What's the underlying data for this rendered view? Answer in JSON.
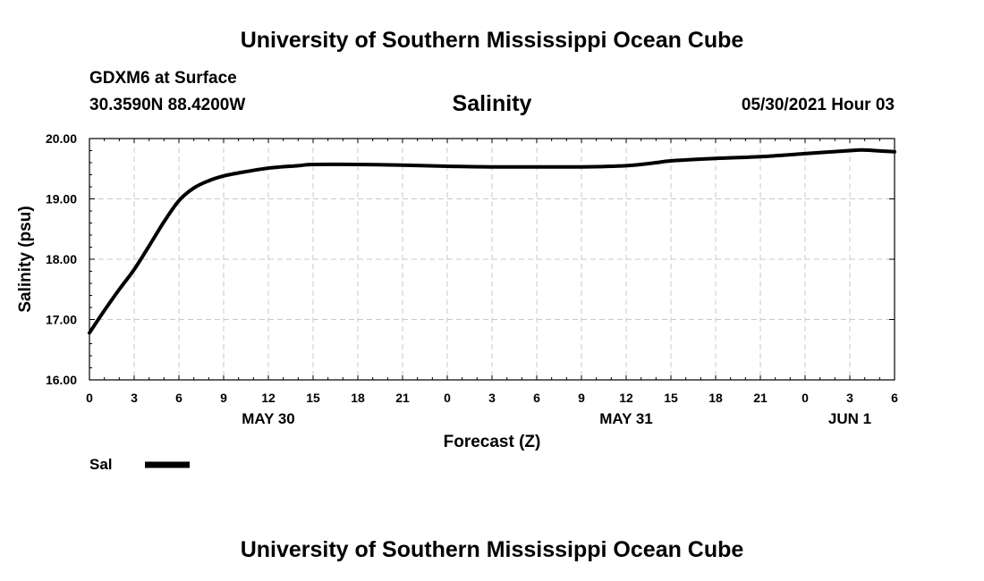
{
  "header": {
    "title": "University of Southern Mississippi Ocean Cube",
    "station": "GDXM6 at Surface",
    "coords": "30.3590N  88.4200W",
    "chart_title": "Salinity",
    "datetime": "05/30/2021 Hour 03"
  },
  "footer": {
    "title": "University of Southern Mississippi Ocean Cube"
  },
  "colors": {
    "line": "#000000",
    "grid": "#c8c8c8",
    "background": "#ffffff"
  },
  "chart_data": {
    "type": "line",
    "title": "Salinity",
    "xlabel": "Forecast (Z)",
    "ylabel": "Salinity (psu)",
    "ylim": [
      16.0,
      20.0
    ],
    "yticks": [
      "16.00",
      "17.00",
      "18.00",
      "19.00",
      "20.00"
    ],
    "ytick_values": [
      16,
      17,
      18,
      19,
      20
    ],
    "xlim": [
      0,
      54
    ],
    "xtick_hours": [
      0,
      3,
      6,
      9,
      12,
      15,
      18,
      21,
      24,
      27,
      30,
      33,
      36,
      39,
      42,
      45,
      48,
      51,
      54
    ],
    "xtick_labels": [
      "0",
      "3",
      "6",
      "9",
      "12",
      "15",
      "18",
      "21",
      "0",
      "3",
      "6",
      "9",
      "12",
      "15",
      "18",
      "21",
      "0",
      "3",
      "6"
    ],
    "date_labels": [
      {
        "hour": 12,
        "label": "MAY 30"
      },
      {
        "hour": 36,
        "label": "MAY 31"
      },
      {
        "hour": 51,
        "label": "JUN 1"
      }
    ],
    "grid": true,
    "legend": [
      {
        "name": "Sal"
      }
    ],
    "series": [
      {
        "name": "Sal",
        "x": [
          0,
          1,
          2,
          3,
          4,
          5,
          6,
          7,
          8,
          9,
          10,
          12,
          14,
          15,
          18,
          21,
          24,
          27,
          30,
          33,
          36,
          38,
          39,
          42,
          45,
          48,
          51,
          52,
          54
        ],
        "y": [
          16.78,
          17.15,
          17.5,
          17.83,
          18.22,
          18.62,
          18.97,
          19.18,
          19.3,
          19.38,
          19.43,
          19.51,
          19.55,
          19.57,
          19.57,
          19.56,
          19.54,
          19.53,
          19.53,
          19.53,
          19.55,
          19.6,
          19.63,
          19.67,
          19.7,
          19.75,
          19.8,
          19.81,
          19.78
        ]
      }
    ]
  }
}
